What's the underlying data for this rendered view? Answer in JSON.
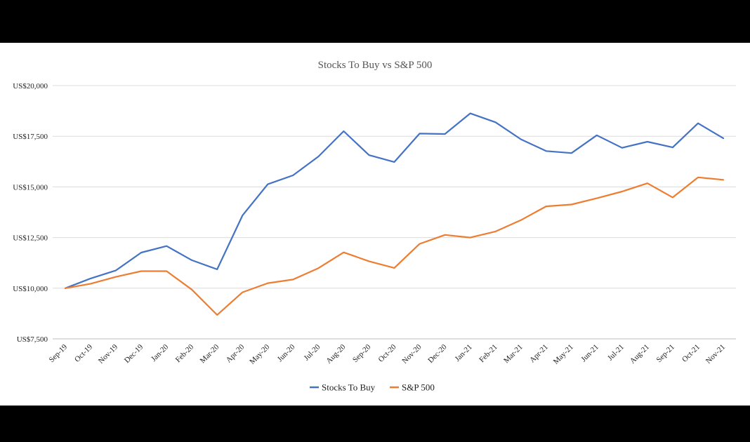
{
  "chart_data": {
    "type": "line",
    "title": "Stocks To Buy vs S&P 500",
    "xlabel": "",
    "ylabel": "",
    "ylim": [
      7500,
      20000
    ],
    "yticks": [
      7500,
      10000,
      12500,
      15000,
      17500,
      20000
    ],
    "ytick_labels": [
      "US$7,500",
      "US$10,000",
      "US$12,500",
      "US$15,000",
      "US$17,500",
      "US$20,000"
    ],
    "grid": true,
    "legend_position": "bottom",
    "categories": [
      "Sep-19",
      "Oct-19",
      "Nov-19",
      "Dec-19",
      "Jan-20",
      "Feb-20",
      "Mar-20",
      "Apr-20",
      "May-20",
      "Jun-20",
      "Jul-20",
      "Aug-20",
      "Sep-20",
      "Oct-20",
      "Nov-20",
      "Dec-20",
      "Jan-21",
      "Feb-21",
      "Mar-21",
      "Apr-21",
      "May-21",
      "Jun-21",
      "Jul-21",
      "Aug-21",
      "Sep-21",
      "Oct-21",
      "Nov-21"
    ],
    "series": [
      {
        "name": "Stocks To Buy",
        "color": "#4472c4",
        "values": [
          10000,
          10480,
          10880,
          11760,
          12080,
          11380,
          10930,
          13590,
          15130,
          15570,
          16500,
          17750,
          16570,
          16230,
          17630,
          17610,
          18630,
          18190,
          17350,
          16770,
          16670,
          17550,
          16930,
          17230,
          16950,
          18140,
          17400
        ]
      },
      {
        "name": "S&P 500",
        "color": "#ed7d31",
        "values": [
          10000,
          10220,
          10560,
          10840,
          10840,
          9930,
          8680,
          9800,
          10250,
          10430,
          10990,
          11770,
          11330,
          11000,
          12190,
          12630,
          12500,
          12800,
          13360,
          14040,
          14130,
          14440,
          14770,
          15180,
          14480,
          15470,
          15350
        ]
      }
    ]
  }
}
